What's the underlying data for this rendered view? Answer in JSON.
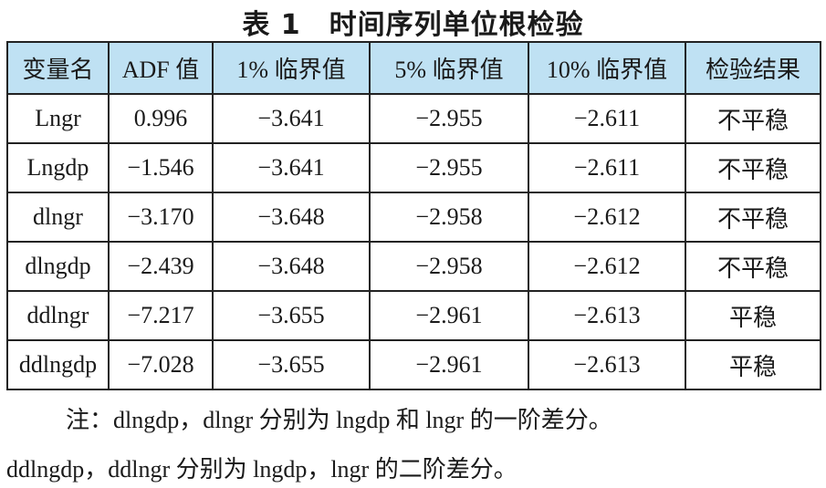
{
  "title": "表 1　时间序列单位根检验",
  "table": {
    "header": [
      "变量名",
      "ADF 值",
      "1% 临界值",
      "5% 临界值",
      "10% 临界值",
      "检验结果"
    ],
    "rows": [
      [
        "Lngr",
        "0.996",
        "−3.641",
        "−2.955",
        "−2.611",
        "不平稳"
      ],
      [
        "Lngdp",
        "−1.546",
        "−3.641",
        "−2.955",
        "−2.611",
        "不平稳"
      ],
      [
        "dlngr",
        "−3.170",
        "−3.648",
        "−2.958",
        "−2.612",
        "不平稳"
      ],
      [
        "dlngdp",
        "−2.439",
        "−3.648",
        "−2.958",
        "−2.612",
        "不平稳"
      ],
      [
        "ddlngr",
        "−7.217",
        "−3.655",
        "−2.961",
        "−2.613",
        "平稳"
      ],
      [
        "ddlngdp",
        "−7.028",
        "−3.655",
        "−2.961",
        "−2.613",
        "平稳"
      ]
    ]
  },
  "note": [
    "注：dlngdp，dlngr 分别为 lngdp 和 lngr 的一阶差分。",
    "ddlngdp，ddlngr 分别为 lngdp，lngr 的二阶差分。"
  ]
}
